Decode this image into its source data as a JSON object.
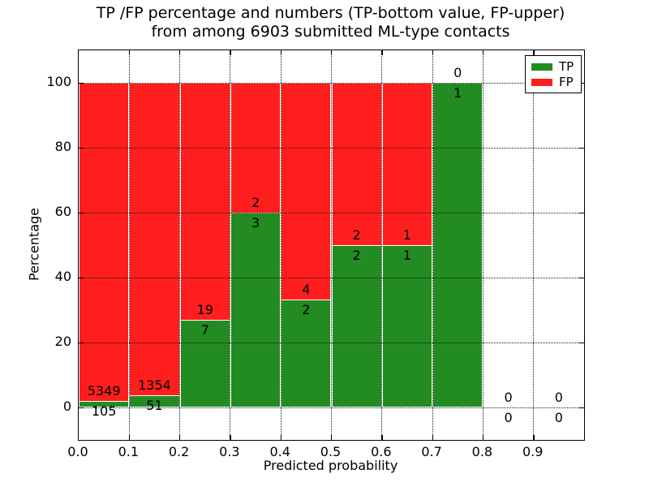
{
  "title": {
    "line1": "TP /FP percentage and numbers (TP-bottom value, FP-upper)",
    "line2": "from among 6903 submitted ML-type contacts"
  },
  "colors": {
    "tp": "#228B22",
    "fp": "#FF1E1E",
    "grid": "#1a1a1a",
    "axis": "#000000",
    "background": "#ffffff"
  },
  "legend": {
    "items": [
      {
        "label": "TP"
      },
      {
        "label": "FP"
      }
    ]
  },
  "chart_data": {
    "type": "bar",
    "stacked": true,
    "title": "TP /FP percentage and numbers (TP-bottom value, FP-upper) from among 6903 submitted ML-type contacts",
    "xlabel": "Predicted probability",
    "ylabel": "Percentage",
    "xlim": [
      0.0,
      1.0
    ],
    "ylim": [
      -10,
      110
    ],
    "bin_width": 0.1,
    "total_contacts": 6903,
    "grid_style": "dotted",
    "legend_position": "upper right",
    "x_ticks": [
      {
        "value": 0.0,
        "label": "0.0"
      },
      {
        "value": 0.1,
        "label": "0.1"
      },
      {
        "value": 0.2,
        "label": "0.2"
      },
      {
        "value": 0.3,
        "label": "0.3"
      },
      {
        "value": 0.4,
        "label": "0.4"
      },
      {
        "value": 0.5,
        "label": "0.5"
      },
      {
        "value": 0.6,
        "label": "0.6"
      },
      {
        "value": 0.7,
        "label": "0.7"
      },
      {
        "value": 0.8,
        "label": "0.8"
      },
      {
        "value": 0.9,
        "label": "0.9"
      }
    ],
    "y_ticks": [
      {
        "value": 0,
        "label": "0"
      },
      {
        "value": 20,
        "label": "20"
      },
      {
        "value": 40,
        "label": "40"
      },
      {
        "value": 60,
        "label": "60"
      },
      {
        "value": 80,
        "label": "80"
      },
      {
        "value": 100,
        "label": "100"
      }
    ],
    "series": [
      {
        "name": "TP",
        "color_key": "tp"
      },
      {
        "name": "FP",
        "color_key": "fp"
      }
    ],
    "bars": [
      {
        "bin_start": 0.0,
        "bin_end": 0.1,
        "tp_count": 105,
        "fp_count": 5349,
        "tp_pct": 1.93,
        "fp_pct": 98.07
      },
      {
        "bin_start": 0.1,
        "bin_end": 0.2,
        "tp_count": 51,
        "fp_count": 1354,
        "tp_pct": 3.63,
        "fp_pct": 96.37
      },
      {
        "bin_start": 0.2,
        "bin_end": 0.3,
        "tp_count": 7,
        "fp_count": 19,
        "tp_pct": 26.92,
        "fp_pct": 73.08
      },
      {
        "bin_start": 0.3,
        "bin_end": 0.4,
        "tp_count": 3,
        "fp_count": 2,
        "tp_pct": 60.0,
        "fp_pct": 40.0
      },
      {
        "bin_start": 0.4,
        "bin_end": 0.5,
        "tp_count": 2,
        "fp_count": 4,
        "tp_pct": 33.33,
        "fp_pct": 66.67
      },
      {
        "bin_start": 0.5,
        "bin_end": 0.6,
        "tp_count": 2,
        "fp_count": 2,
        "tp_pct": 50.0,
        "fp_pct": 50.0
      },
      {
        "bin_start": 0.6,
        "bin_end": 0.7,
        "tp_count": 1,
        "fp_count": 1,
        "tp_pct": 50.0,
        "fp_pct": 50.0
      },
      {
        "bin_start": 0.7,
        "bin_end": 0.8,
        "tp_count": 1,
        "fp_count": 0,
        "tp_pct": 100.0,
        "fp_pct": 0.0
      },
      {
        "bin_start": 0.8,
        "bin_end": 0.9,
        "tp_count": 0,
        "fp_count": 0,
        "tp_pct": null,
        "fp_pct": null
      },
      {
        "bin_start": 0.9,
        "bin_end": 1.0,
        "tp_count": 0,
        "fp_count": 0,
        "tp_pct": null,
        "fp_pct": null
      }
    ]
  }
}
